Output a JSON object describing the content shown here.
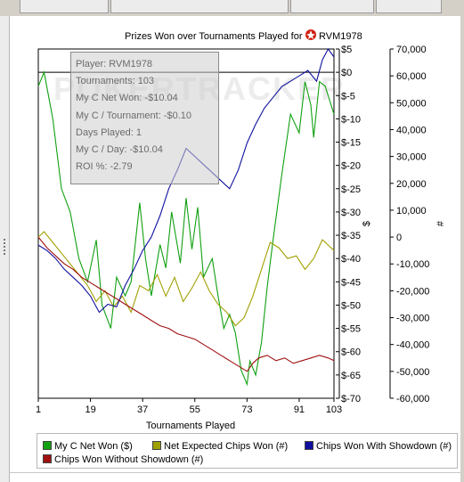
{
  "chart_data": {
    "type": "line",
    "title": "Prizes Won over Tournaments Played for",
    "player_name": "RVM1978",
    "watermark": "POKERTRACKER",
    "xlabel": "Tournaments Played",
    "x_ticks": [
      "1",
      "19",
      "37",
      "55",
      "73",
      "91",
      "103"
    ],
    "xlim": [
      1,
      103
    ],
    "y_left_label": "$",
    "y_left_range": [
      -70,
      5
    ],
    "y_left_ticks": [
      "$5",
      "$0",
      "$-5",
      "$-10",
      "$-15",
      "$-20",
      "$-25",
      "$-30",
      "$-35",
      "$-40",
      "$-45",
      "$-50",
      "$-55",
      "$-60",
      "$-65",
      "$-70"
    ],
    "y_right_label": "#",
    "y_right_range": [
      -60000,
      70000
    ],
    "y_right_ticks": [
      "70,000",
      "60,000",
      "50,000",
      "40,000",
      "30,000",
      "20,000",
      "10,000",
      "0",
      "-10,000",
      "-20,000",
      "-30,000",
      "-40,000",
      "-50,000",
      "-60,000"
    ],
    "series": [
      {
        "name": "My C Net Won ($)",
        "color": "#10a010",
        "axis": "left",
        "x": [
          1,
          3,
          6,
          9,
          12,
          15,
          18,
          21,
          23,
          26,
          28,
          31,
          33,
          36,
          38,
          40,
          43,
          45,
          47,
          50,
          52,
          54,
          56,
          58,
          61,
          63,
          65,
          67,
          69,
          71,
          73,
          74,
          76,
          78,
          80,
          82,
          85,
          88,
          91,
          93,
          95,
          96,
          98,
          100,
          103
        ],
        "y": [
          -3,
          0,
          -10,
          -25,
          -30,
          -40,
          -45,
          -36,
          -50,
          -55,
          -44,
          -48,
          -45,
          -28,
          -40,
          -48,
          -37,
          -42,
          -30,
          -41,
          -27,
          -38,
          -29,
          -44,
          -40,
          -48,
          -55,
          -52,
          -56,
          -64,
          -67,
          -62,
          -65,
          -58,
          -46,
          -36,
          -22,
          -9,
          -13,
          -2,
          -7,
          -14,
          -2,
          -3,
          -9
        ]
      },
      {
        "name": "Net Expected Chips Won (#)",
        "color": "#a0a000",
        "axis": "right",
        "x": [
          1,
          3,
          6,
          9,
          12,
          15,
          18,
          21,
          24,
          27,
          30,
          33,
          36,
          39,
          42,
          45,
          48,
          51,
          54,
          57,
          60,
          63,
          66,
          69,
          72,
          75,
          78,
          81,
          84,
          87,
          90,
          93,
          96,
          99,
          101,
          103
        ],
        "y": [
          0,
          2000,
          -2000,
          -6000,
          -10000,
          -14000,
          -18000,
          -24000,
          -20000,
          -26000,
          -22000,
          -28000,
          -18000,
          -20000,
          -14000,
          -22000,
          -15000,
          -24000,
          -19000,
          -13000,
          -20000,
          -25000,
          -28000,
          -33000,
          -30000,
          -22000,
          -12000,
          -2000,
          -4000,
          -8000,
          -7000,
          -12000,
          -8000,
          -1000,
          -3000,
          -5000
        ]
      },
      {
        "name": "Chips Won With Showdown (#)",
        "color": "#1010a0",
        "axis": "right",
        "x": [
          1,
          4,
          7,
          10,
          13,
          16,
          19,
          22,
          25,
          28,
          31,
          34,
          37,
          40,
          43,
          46,
          49,
          52,
          55,
          58,
          61,
          64,
          67,
          70,
          73,
          76,
          79,
          82,
          85,
          88,
          91,
          94,
          97,
          99,
          101,
          103
        ],
        "y": [
          -3000,
          -5000,
          -8000,
          -12000,
          -15000,
          -18000,
          -22000,
          -28000,
          -25000,
          -26000,
          -18000,
          -12000,
          -5000,
          0,
          8000,
          18000,
          25000,
          33000,
          30000,
          27000,
          24000,
          21000,
          18000,
          25000,
          35000,
          42000,
          48000,
          52000,
          56000,
          58000,
          60000,
          62000,
          58000,
          66000,
          70000,
          67000
        ]
      },
      {
        "name": "Chips Won Without Showdown (#)",
        "color": "#a01010",
        "axis": "right",
        "x": [
          1,
          4,
          7,
          10,
          13,
          16,
          19,
          22,
          25,
          28,
          31,
          34,
          37,
          40,
          43,
          46,
          49,
          52,
          55,
          58,
          61,
          64,
          67,
          70,
          73,
          75,
          77,
          80,
          83,
          86,
          89,
          92,
          95,
          98,
          101,
          103
        ],
        "y": [
          0,
          -4000,
          -7000,
          -10000,
          -12000,
          -15000,
          -17000,
          -19000,
          -21000,
          -23000,
          -25000,
          -27000,
          -29000,
          -31000,
          -33000,
          -34000,
          -36000,
          -37000,
          -38000,
          -40000,
          -42000,
          -44000,
          -46000,
          -48000,
          -50000,
          -47000,
          -45000,
          -44000,
          -46000,
          -45000,
          -47000,
          -46000,
          -45000,
          -44000,
          -45000,
          -46000
        ]
      }
    ],
    "legend_position": "bottom",
    "grid": false
  },
  "tooltip": {
    "lines": [
      "Player: RVM1978",
      "Tournaments: 103",
      "My C Net Won: -$10.04",
      "My C / Tournament: -$0.10",
      "Days Played: 1",
      "My C / Day: -$10.04",
      "ROI %: -2.79"
    ]
  }
}
